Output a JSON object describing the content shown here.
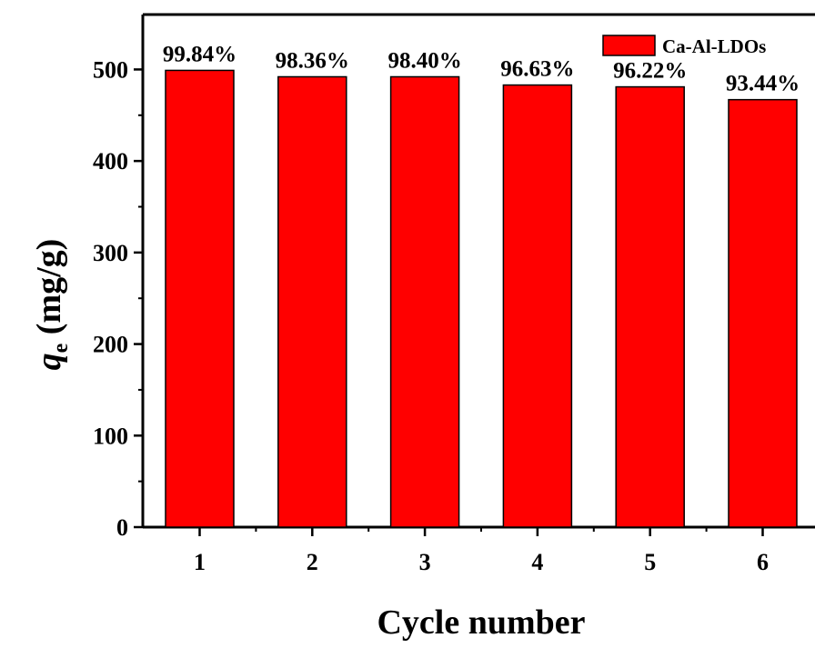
{
  "chart_data": {
    "type": "bar",
    "categories": [
      "1",
      "2",
      "3",
      "4",
      "5",
      "6"
    ],
    "series": [
      {
        "name": "Ca-Al-LDOs",
        "values": [
          499,
          492,
          492,
          483,
          481,
          467
        ],
        "data_labels": [
          "99.84%",
          "98.36%",
          "98.40%",
          "96.63%",
          "96.22%",
          "93.44%"
        ],
        "color": "#ff0000"
      }
    ],
    "xlabel": "Cycle number",
    "ylabel": {
      "symbol": "q",
      "subscript": "e",
      "unit": " (mg/g)"
    },
    "ylim": [
      0,
      560
    ],
    "yticks": [
      0,
      100,
      200,
      300,
      400,
      500
    ],
    "grid": false,
    "legend": "top-right"
  }
}
